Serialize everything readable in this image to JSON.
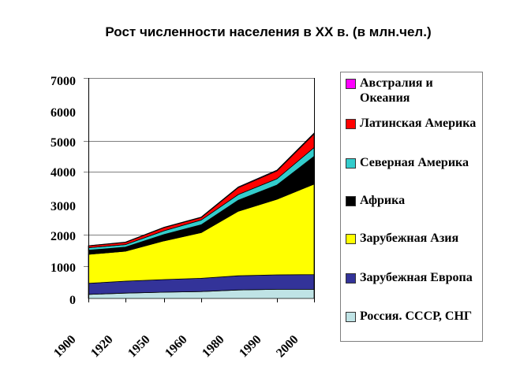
{
  "chart_data": {
    "type": "area",
    "stacked": true,
    "title": "Рост численности населения в XX в. (в млн.чел.)",
    "xlabel": "",
    "ylabel": "",
    "ylim": [
      0,
      7000
    ],
    "yticks": [
      "0",
      "1000",
      "2000",
      "3000",
      "4000",
      "5000",
      "6000",
      "7000"
    ],
    "categories": [
      "1900",
      "1920",
      "1950",
      "1960",
      "1980",
      "1990",
      "2000"
    ],
    "legend_position": "right",
    "grid": "partial horizontal (2000, 4000, 5000, 7000)",
    "series": [
      {
        "name": "Россия. СССР, СНГ",
        "color": "#bfe3e5",
        "values": [
          130,
          170,
          200,
          220,
          270,
          290,
          290
        ]
      },
      {
        "name": "Зарубежная Европа",
        "color": "#333399",
        "values": [
          350,
          380,
          400,
          420,
          450,
          460,
          470
        ]
      },
      {
        "name": "Зарубежная Азия",
        "color": "#ffff00",
        "values": [
          920,
          950,
          1230,
          1450,
          2050,
          2400,
          2870
        ]
      },
      {
        "name": "Африка",
        "color": "#000000",
        "values": [
          130,
          130,
          200,
          250,
          350,
          450,
          880
        ]
      },
      {
        "name": "Северная Америка",
        "color": "#33cccc",
        "values": [
          80,
          80,
          120,
          150,
          180,
          200,
          280
        ]
      },
      {
        "name": "Латинская Америка",
        "color": "#ff0000",
        "values": [
          60,
          70,
          100,
          80,
          220,
          250,
          430
        ]
      },
      {
        "name": "Австралия и Океания",
        "color": "#ff00ff",
        "values": [
          6,
          9,
          13,
          16,
          23,
          26,
          30
        ]
      }
    ]
  },
  "title": "Рост численности населения в XX в. (в млн.чел.)",
  "yaxis": {
    "ticks": [
      "7000",
      "6000",
      "5000",
      "4000",
      "3000",
      "2000",
      "1000",
      "0"
    ]
  },
  "xaxis": {
    "ticks": [
      "1900",
      "1920",
      "1950",
      "1960",
      "1980",
      "1990",
      "2000"
    ]
  },
  "legend": {
    "items": [
      {
        "label": "Австралия и Океания",
        "color": "#ff00ff"
      },
      {
        "label": "Латинская Америка",
        "color": "#ff0000"
      },
      {
        "label": "Северная Америка",
        "color": "#33cccc"
      },
      {
        "label": "Африка",
        "color": "#000000"
      },
      {
        "label": "Зарубежная Азия",
        "color": "#ffff00"
      },
      {
        "label": "Зарубежная Европа",
        "color": "#333399"
      },
      {
        "label": "Россия. СССР, СНГ",
        "color": "#bfe3e5"
      }
    ]
  }
}
